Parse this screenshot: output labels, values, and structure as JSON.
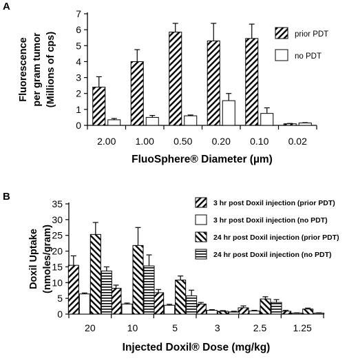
{
  "chart_data": [
    {
      "panel": "A",
      "type": "bar",
      "categories": [
        "2.00",
        "1.00",
        "0.50",
        "0.20",
        "0.10",
        "0.02"
      ],
      "xlabel": "FluoSphere® Diameter (µm)",
      "ylabel_lines": [
        "Fluorescence",
        "per gram tumor",
        "(Millions of cps)"
      ],
      "ylim": [
        0,
        7
      ],
      "yticks": [
        0,
        1,
        2,
        3,
        4,
        5,
        6,
        7
      ],
      "grid": false,
      "legend_position": "top-right",
      "series": [
        {
          "name": "prior PDT",
          "pattern": "diagonal-forward",
          "values": [
            2.4,
            4.0,
            5.85,
            5.3,
            5.45,
            0.1
          ],
          "errors": [
            0.65,
            0.75,
            0.55,
            1.1,
            0.9,
            0.02
          ]
        },
        {
          "name": "no PDT",
          "pattern": "solid-white",
          "values": [
            0.35,
            0.5,
            0.6,
            1.55,
            0.75,
            0.15
          ],
          "errors": [
            0.08,
            0.12,
            0.05,
            0.45,
            0.35,
            0.02
          ]
        }
      ]
    },
    {
      "panel": "B",
      "type": "bar",
      "categories": [
        "20",
        "10",
        "5",
        "3",
        "2.5",
        "1.25"
      ],
      "xlabel": "Injected Doxil® Dose (mg/kg)",
      "ylabel_lines": [
        "Doxil Uptake",
        "(nmoles/gram)"
      ],
      "ylim": [
        0,
        35
      ],
      "yticks": [
        0,
        5,
        10,
        15,
        20,
        25,
        30,
        35
      ],
      "grid": false,
      "legend_position": "top-right",
      "series": [
        {
          "name": "3 hr post Doxil injection (prior PDT)",
          "pattern": "diagonal-forward",
          "values": [
            15.5,
            8.2,
            6.8,
            3.2,
            2.0,
            0.9
          ],
          "errors": [
            3.0,
            1.0,
            1.0,
            0.5,
            0.6,
            0.3
          ]
        },
        {
          "name": "3 hr post Doxil injection (no PDT)",
          "pattern": "solid-white",
          "values": [
            6.4,
            3.2,
            2.8,
            1.2,
            1.0,
            0.3
          ],
          "errors": [
            0.3,
            0.3,
            0.3,
            0.2,
            0.2,
            0.1
          ]
        },
        {
          "name": "24 hr post Doxil injection (prior PDT)",
          "pattern": "diagonal-backward",
          "values": [
            25.3,
            21.8,
            10.8,
            0.9,
            4.8,
            1.6
          ],
          "errors": [
            3.8,
            5.7,
            1.3,
            0.2,
            0.7,
            0.3
          ]
        },
        {
          "name": "24 hr post Doxil injection (no PDT)",
          "pattern": "horizontal",
          "values": [
            13.7,
            15.3,
            5.8,
            0.7,
            3.7,
            0.3
          ],
          "errors": [
            1.3,
            3.5,
            1.8,
            0.2,
            0.9,
            0.1
          ]
        }
      ]
    }
  ],
  "labels": {
    "panel_a": "A",
    "panel_b": "B"
  }
}
